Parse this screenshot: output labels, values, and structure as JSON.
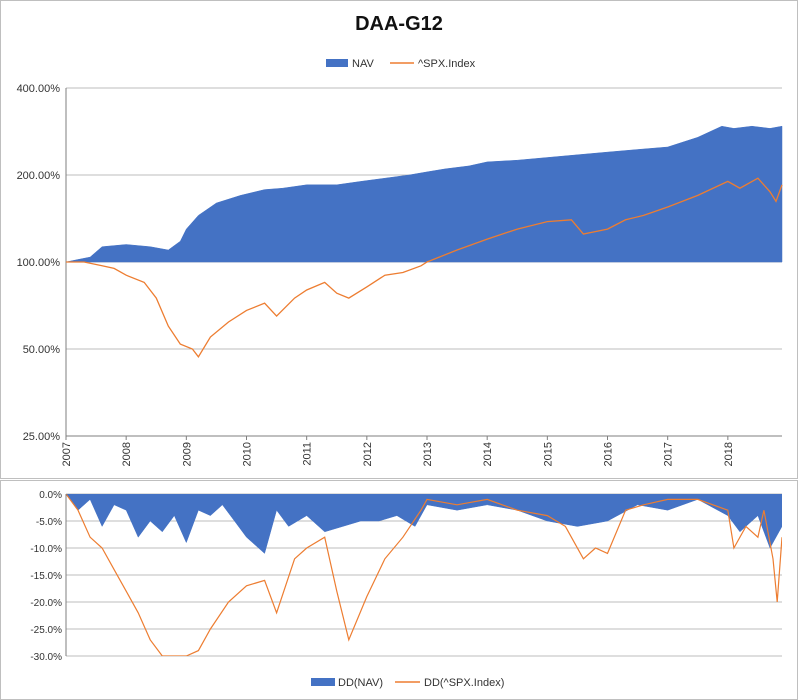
{
  "chart_data": [
    {
      "type": "area",
      "title": "DAA-G12",
      "y_scale": "log",
      "ylim": [
        0.25,
        4.0
      ],
      "y_ticks": [
        {
          "value": 0.25,
          "label": "25.00%"
        },
        {
          "value": 0.5,
          "label": "50.00%"
        },
        {
          "value": 1.0,
          "label": "100.00%"
        },
        {
          "value": 2.0,
          "label": "200.00%"
        },
        {
          "value": 4.0,
          "label": "400.00%"
        }
      ],
      "xlim": [
        2007.0,
        2018.9
      ],
      "x_ticks": [
        {
          "value": 2007,
          "label": "2007"
        },
        {
          "value": 2008,
          "label": "2008"
        },
        {
          "value": 2009,
          "label": "2009"
        },
        {
          "value": 2010,
          "label": "2010"
        },
        {
          "value": 2011,
          "label": "2011"
        },
        {
          "value": 2012,
          "label": "2012"
        },
        {
          "value": 2013,
          "label": "2013"
        },
        {
          "value": 2014,
          "label": "2014"
        },
        {
          "value": 2015,
          "label": "2015"
        },
        {
          "value": 2016,
          "label": "2016"
        },
        {
          "value": 2017,
          "label": "2017"
        },
        {
          "value": 2018,
          "label": "2018"
        }
      ],
      "legend": "top",
      "series": [
        {
          "name": "NAV",
          "color": "#4472c4",
          "style": "area",
          "x": [
            2007.0,
            2007.2,
            2007.4,
            2007.6,
            2008.0,
            2008.4,
            2008.7,
            2008.9,
            2009.0,
            2009.2,
            2009.5,
            2009.9,
            2010.3,
            2010.6,
            2011.0,
            2011.5,
            2011.9,
            2012.3,
            2012.7,
            2013.0,
            2013.3,
            2013.7,
            2014.0,
            2014.5,
            2015.0,
            2015.5,
            2016.0,
            2016.5,
            2017.0,
            2017.5,
            2017.9,
            2018.1,
            2018.4,
            2018.7,
            2018.9
          ],
          "values": [
            1.0,
            1.02,
            1.04,
            1.13,
            1.15,
            1.13,
            1.1,
            1.18,
            1.3,
            1.45,
            1.6,
            1.7,
            1.78,
            1.8,
            1.85,
            1.85,
            1.9,
            1.95,
            2.0,
            2.05,
            2.1,
            2.15,
            2.22,
            2.25,
            2.3,
            2.35,
            2.4,
            2.45,
            2.5,
            2.7,
            2.95,
            2.9,
            2.95,
            2.9,
            2.95
          ]
        },
        {
          "name": "^SPX.Index",
          "color": "#ed7d31",
          "style": "line",
          "x": [
            2007.0,
            2007.3,
            2007.6,
            2007.8,
            2008.0,
            2008.3,
            2008.5,
            2008.7,
            2008.9,
            2009.1,
            2009.2,
            2009.4,
            2009.7,
            2010.0,
            2010.3,
            2010.5,
            2010.8,
            2011.0,
            2011.3,
            2011.5,
            2011.7,
            2012.0,
            2012.3,
            2012.6,
            2012.9,
            2013.0,
            2013.5,
            2014.0,
            2014.5,
            2015.0,
            2015.4,
            2015.6,
            2016.0,
            2016.3,
            2016.6,
            2017.0,
            2017.5,
            2018.0,
            2018.2,
            2018.5,
            2018.7,
            2018.8,
            2018.9
          ],
          "values": [
            1.0,
            1.0,
            0.97,
            0.95,
            0.9,
            0.85,
            0.75,
            0.6,
            0.52,
            0.5,
            0.47,
            0.55,
            0.62,
            0.68,
            0.72,
            0.65,
            0.75,
            0.8,
            0.85,
            0.78,
            0.75,
            0.82,
            0.9,
            0.92,
            0.97,
            1.0,
            1.1,
            1.2,
            1.3,
            1.38,
            1.4,
            1.25,
            1.3,
            1.4,
            1.45,
            1.55,
            1.7,
            1.9,
            1.8,
            1.95,
            1.75,
            1.62,
            1.85
          ]
        }
      ]
    },
    {
      "type": "area",
      "ylim": [
        -30,
        0
      ],
      "y_ticks": [
        {
          "value": 0,
          "label": "0.0%"
        },
        {
          "value": -5,
          "label": "-5.0%"
        },
        {
          "value": -10,
          "label": "-10.0%"
        },
        {
          "value": -15,
          "label": "-15.0%"
        },
        {
          "value": -20,
          "label": "-20.0%"
        },
        {
          "value": -25,
          "label": "-25.0%"
        },
        {
          "value": -30,
          "label": "-30.0%"
        }
      ],
      "xlim": [
        2007.0,
        2018.9
      ],
      "legend": "bottom",
      "series": [
        {
          "name": "DD(NAV)",
          "color": "#4472c4",
          "style": "area",
          "x": [
            2007.0,
            2007.2,
            2007.4,
            2007.6,
            2007.8,
            2008.0,
            2008.2,
            2008.4,
            2008.6,
            2008.8,
            2009.0,
            2009.2,
            2009.4,
            2009.6,
            2009.8,
            2010.0,
            2010.3,
            2010.5,
            2010.7,
            2011.0,
            2011.3,
            2011.6,
            2011.9,
            2012.2,
            2012.5,
            2012.8,
            2013.0,
            2013.5,
            2014.0,
            2014.5,
            2015.0,
            2015.5,
            2016.0,
            2016.5,
            2017.0,
            2017.5,
            2018.0,
            2018.2,
            2018.5,
            2018.7,
            2018.9
          ],
          "values": [
            0,
            -3,
            -1,
            -6,
            -2,
            -3,
            -8,
            -5,
            -7,
            -4,
            -9,
            -3,
            -4,
            -2,
            -5,
            -8,
            -11,
            -3,
            -6,
            -4,
            -7,
            -6,
            -5,
            -5,
            -4,
            -6,
            -2,
            -3,
            -2,
            -3,
            -5,
            -6,
            -5,
            -2,
            -3,
            -1,
            -4,
            -7,
            -4,
            -10,
            -6
          ]
        },
        {
          "name": "DD(^SPX.Index)",
          "color": "#ed7d31",
          "style": "line",
          "x": [
            2007.0,
            2007.2,
            2007.4,
            2007.6,
            2007.8,
            2008.0,
            2008.2,
            2008.4,
            2008.6,
            2008.8,
            2009.0,
            2009.2,
            2009.4,
            2009.7,
            2010.0,
            2010.3,
            2010.5,
            2010.8,
            2011.0,
            2011.3,
            2011.5,
            2011.7,
            2012.0,
            2012.3,
            2012.6,
            2012.9,
            2013.0,
            2013.5,
            2014.0,
            2014.5,
            2015.0,
            2015.3,
            2015.6,
            2015.8,
            2016.0,
            2016.3,
            2016.6,
            2017.0,
            2017.5,
            2018.0,
            2018.1,
            2018.3,
            2018.5,
            2018.6,
            2018.75,
            2018.82,
            2018.9
          ],
          "values": [
            0,
            -3,
            -8,
            -10,
            -14,
            -18,
            -22,
            -27,
            -30,
            -30,
            -30,
            -29,
            -25,
            -20,
            -17,
            -16,
            -22,
            -12,
            -10,
            -8,
            -18,
            -27,
            -19,
            -12,
            -8,
            -3,
            -1,
            -2,
            -1,
            -3,
            -4,
            -6,
            -12,
            -10,
            -11,
            -3,
            -2,
            -1,
            -1,
            -3,
            -10,
            -6,
            -8,
            -3,
            -12,
            -20,
            -8
          ]
        }
      ]
    }
  ],
  "legend_top": {
    "nav_label": "NAV",
    "spx_label": "^SPX.Index"
  },
  "legend_bottom": {
    "dd_nav_label": "DD(NAV)",
    "dd_spx_label": "DD(^SPX.Index)"
  }
}
